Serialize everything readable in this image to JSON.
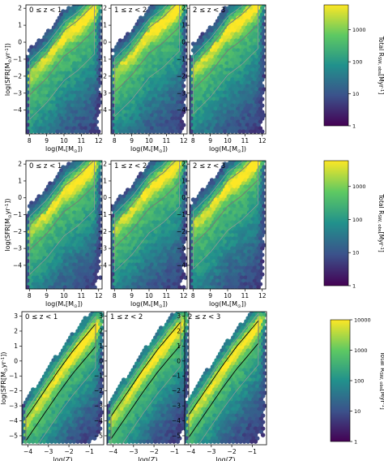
{
  "chart_data": [
    {
      "type": "heatmap",
      "panels": [
        "0 ≤ z < 1",
        "1 ≤ z < 2",
        "2 ≤ z < 3"
      ],
      "xlabel": "log(M$_*$[M$_\\odot$])",
      "ylabel": "log(SFR[M$_\\odot$yr$^{-1}$])",
      "x_ticks": [
        "8",
        "9",
        "10",
        "11",
        "12"
      ],
      "y_ticks": [
        "2",
        "1",
        "0",
        "−1",
        "−2",
        "−3",
        "−4"
      ],
      "xlim": [
        7.8,
        12.2
      ],
      "ylim": [
        -5.4,
        2.2
      ],
      "colorbar": {
        "label": "Total R$_{\\rm SW,\\,obs}$[Myr$^{-1}$]",
        "ticks": [
          "1",
          "10",
          "100",
          "1000"
        ],
        "range": [
          1,
          6000
        ],
        "scale": "log"
      },
      "contours": "grey, two levels per panel",
      "ridge": [
        [
          8,
          -2.0
        ],
        [
          9,
          -1.0
        ],
        [
          10,
          0.3
        ],
        [
          10.8,
          0.9
        ],
        [
          11.2,
          1.3
        ]
      ]
    },
    {
      "type": "heatmap",
      "panels": [
        "0 ≤ z < 1",
        "1 ≤ z < 2",
        "2 ≤ z < 3"
      ],
      "xlabel": "log(M$_*$[M$_\\odot$])",
      "ylabel": "log(SFR[M$_\\odot$yr$^{-1}$])",
      "x_ticks": [
        "8",
        "9",
        "10",
        "11",
        "12"
      ],
      "y_ticks": [
        "2",
        "1",
        "0",
        "−1",
        "−2",
        "−3",
        "−4"
      ],
      "xlim": [
        7.8,
        12.2
      ],
      "ylim": [
        -5.4,
        2.2
      ],
      "colorbar": {
        "label": "Total R$_{\\rm SW,\\,obs}$[Myr$^{-1}$]",
        "ticks": [
          "1",
          "10",
          "100",
          "1000"
        ],
        "range": [
          1,
          6000
        ],
        "scale": "log"
      },
      "contours": "grey, two levels per panel",
      "ridge": [
        [
          8,
          -2.0
        ],
        [
          9,
          -1.0
        ],
        [
          10,
          0.3
        ],
        [
          10.8,
          0.9
        ],
        [
          11.2,
          1.3
        ]
      ]
    },
    {
      "type": "heatmap",
      "panels": [
        "0 ≤ z < 1",
        "1 ≤ z < 2",
        "2 ≤ z < 3"
      ],
      "xlabel": "log(Z)",
      "ylabel": "log(SFR[M$_\\odot$yr$^{-1}$])",
      "x_ticks": [
        "−4",
        "−3",
        "−2",
        "−1"
      ],
      "y_ticks": [
        "3",
        "2",
        "1",
        "0",
        "−1",
        "−2",
        "−3",
        "−4",
        "−5"
      ],
      "xlim": [
        -4.3,
        -0.3
      ],
      "ylim": [
        -5.6,
        3.3
      ],
      "colorbar": {
        "label": "Total R$_{\\rm SW,\\,obs}$[Myr$^{-1}$]",
        "ticks": [
          "1",
          "10",
          "100",
          "1000",
          "10000"
        ],
        "range": [
          1,
          10000
        ],
        "scale": "log"
      },
      "contours": "black, two levels per panel",
      "ridge": [
        [
          -3.5,
          -3.0
        ],
        [
          -2.5,
          -1.0
        ],
        [
          -1.8,
          0.3
        ],
        [
          -1.0,
          1.6
        ]
      ]
    }
  ],
  "colors": {
    "viridis": [
      "#440154",
      "#3b528b",
      "#21918c",
      "#5ec962",
      "#fde725"
    ],
    "contour_grey": "#777777",
    "contour_black": "#000000"
  }
}
